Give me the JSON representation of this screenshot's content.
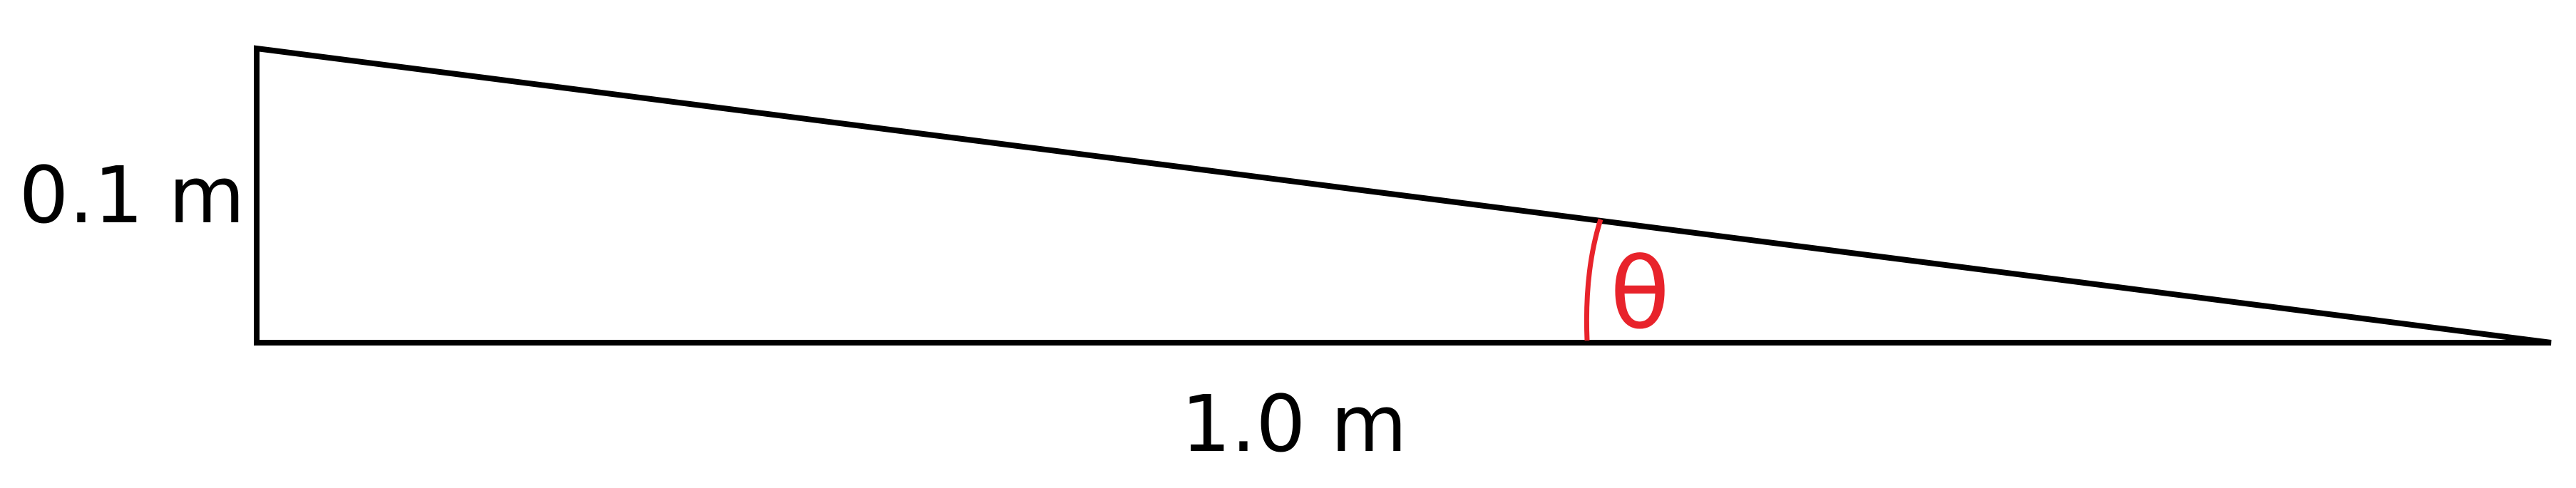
{
  "diagram": {
    "height_label": "0.1 m",
    "base_label": "1.0 m",
    "angle_label": "θ",
    "colors": {
      "outline": "#000000",
      "angle": "#e8232b",
      "background": "#ffffff"
    }
  }
}
